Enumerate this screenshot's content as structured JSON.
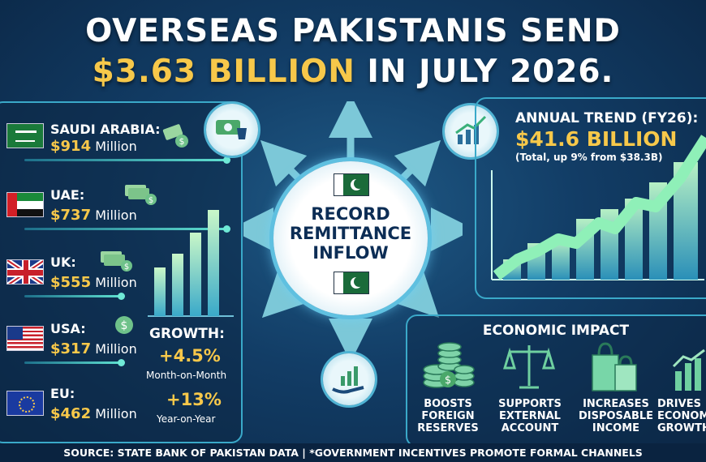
{
  "title": {
    "line1": "OVERSEAS PAKISTANIS SEND",
    "line2_amount": "$3.63 BILLION",
    "line2_rest": " IN JULY 2026."
  },
  "countries": [
    {
      "name": "SAUDI ARABIA:",
      "value": "$914",
      "unit": " Million",
      "flag": "saudi-arabia"
    },
    {
      "name": "UAE:",
      "value": "$737",
      "unit": " Million",
      "flag": "uae"
    },
    {
      "name": "UK:",
      "value": "$555",
      "unit": " Million",
      "flag": "uk"
    },
    {
      "name": "USA:",
      "value": "$317",
      "unit": " Million",
      "flag": "usa"
    },
    {
      "name": "EU:",
      "value": "$462",
      "unit": " Million",
      "flag": "eu"
    }
  ],
  "growth": {
    "label": "GROWTH:",
    "mom_value": "+4.5%",
    "mom_label": "Month-on-Month",
    "yoy_value": "+13%",
    "yoy_label": "Year-on-Year"
  },
  "center": {
    "line1": "RECORD",
    "line2": "REMITTANCE",
    "line3": "INFLOW"
  },
  "annual": {
    "title": "ANNUAL TREND (FY26):",
    "amount": "$41.6 BILLION",
    "subtitle": "(Total, up 9% from $38.3B)"
  },
  "impact": {
    "title": "ECONOMIC IMPACT",
    "items": [
      {
        "line1": "BOOSTS",
        "line2": "FOREIGN",
        "line3": "RESERVES"
      },
      {
        "line1": "SUPPORTS",
        "line2": "EXTERNAL",
        "line3": "ACCOUNT"
      },
      {
        "line1": "INCREASES",
        "line2": "DISPOSABLE",
        "line3": "INCOME"
      },
      {
        "line1": "DRIVES",
        "line2": "ECONOMIC",
        "line3": "GROWTH"
      }
    ]
  },
  "footer": "SOURCE: STATE BANK OF PAKISTAN DATA | *GOVERNMENT INCENTIVES PROMOTE FORMAL CHANNELS",
  "colors": {
    "accent_gold": "#f7c84a",
    "panel_border": "#3aa9c9",
    "background": "#123d66"
  }
}
